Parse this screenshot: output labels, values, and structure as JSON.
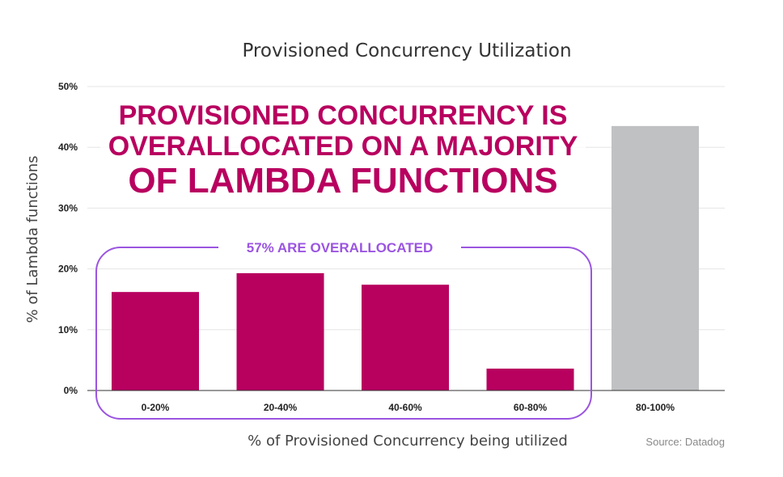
{
  "chart_data": {
    "type": "bar",
    "title": "Provisioned Concurrency Utilization",
    "xlabel": "% of Provisioned Concurrency being utilized",
    "ylabel": "% of Lambda functions",
    "categories": [
      "0-20%",
      "20-40%",
      "40-60%",
      "60-80%",
      "80-100%"
    ],
    "values": [
      16.2,
      19.3,
      17.4,
      3.6,
      43.5
    ],
    "ylim": [
      0,
      50
    ],
    "yticks": [
      "0%",
      "10%",
      "20%",
      "30%",
      "40%",
      "50%"
    ],
    "grid": true,
    "bar_colors": [
      "#b8005f",
      "#b8005f",
      "#b8005f",
      "#b8005f",
      "#c0c1c3"
    ],
    "headline_lines": [
      "PROVISIONED CONCURRENCY IS",
      "OVERALLOCATED ON A MAJORITY",
      "OF LAMBDA FUNCTIONS"
    ],
    "group_annotation": "57% ARE OVERALLOCATED",
    "source": "Source: Datadog",
    "accent_color": "#b8005f",
    "annotation_color": "#9b55e0"
  }
}
